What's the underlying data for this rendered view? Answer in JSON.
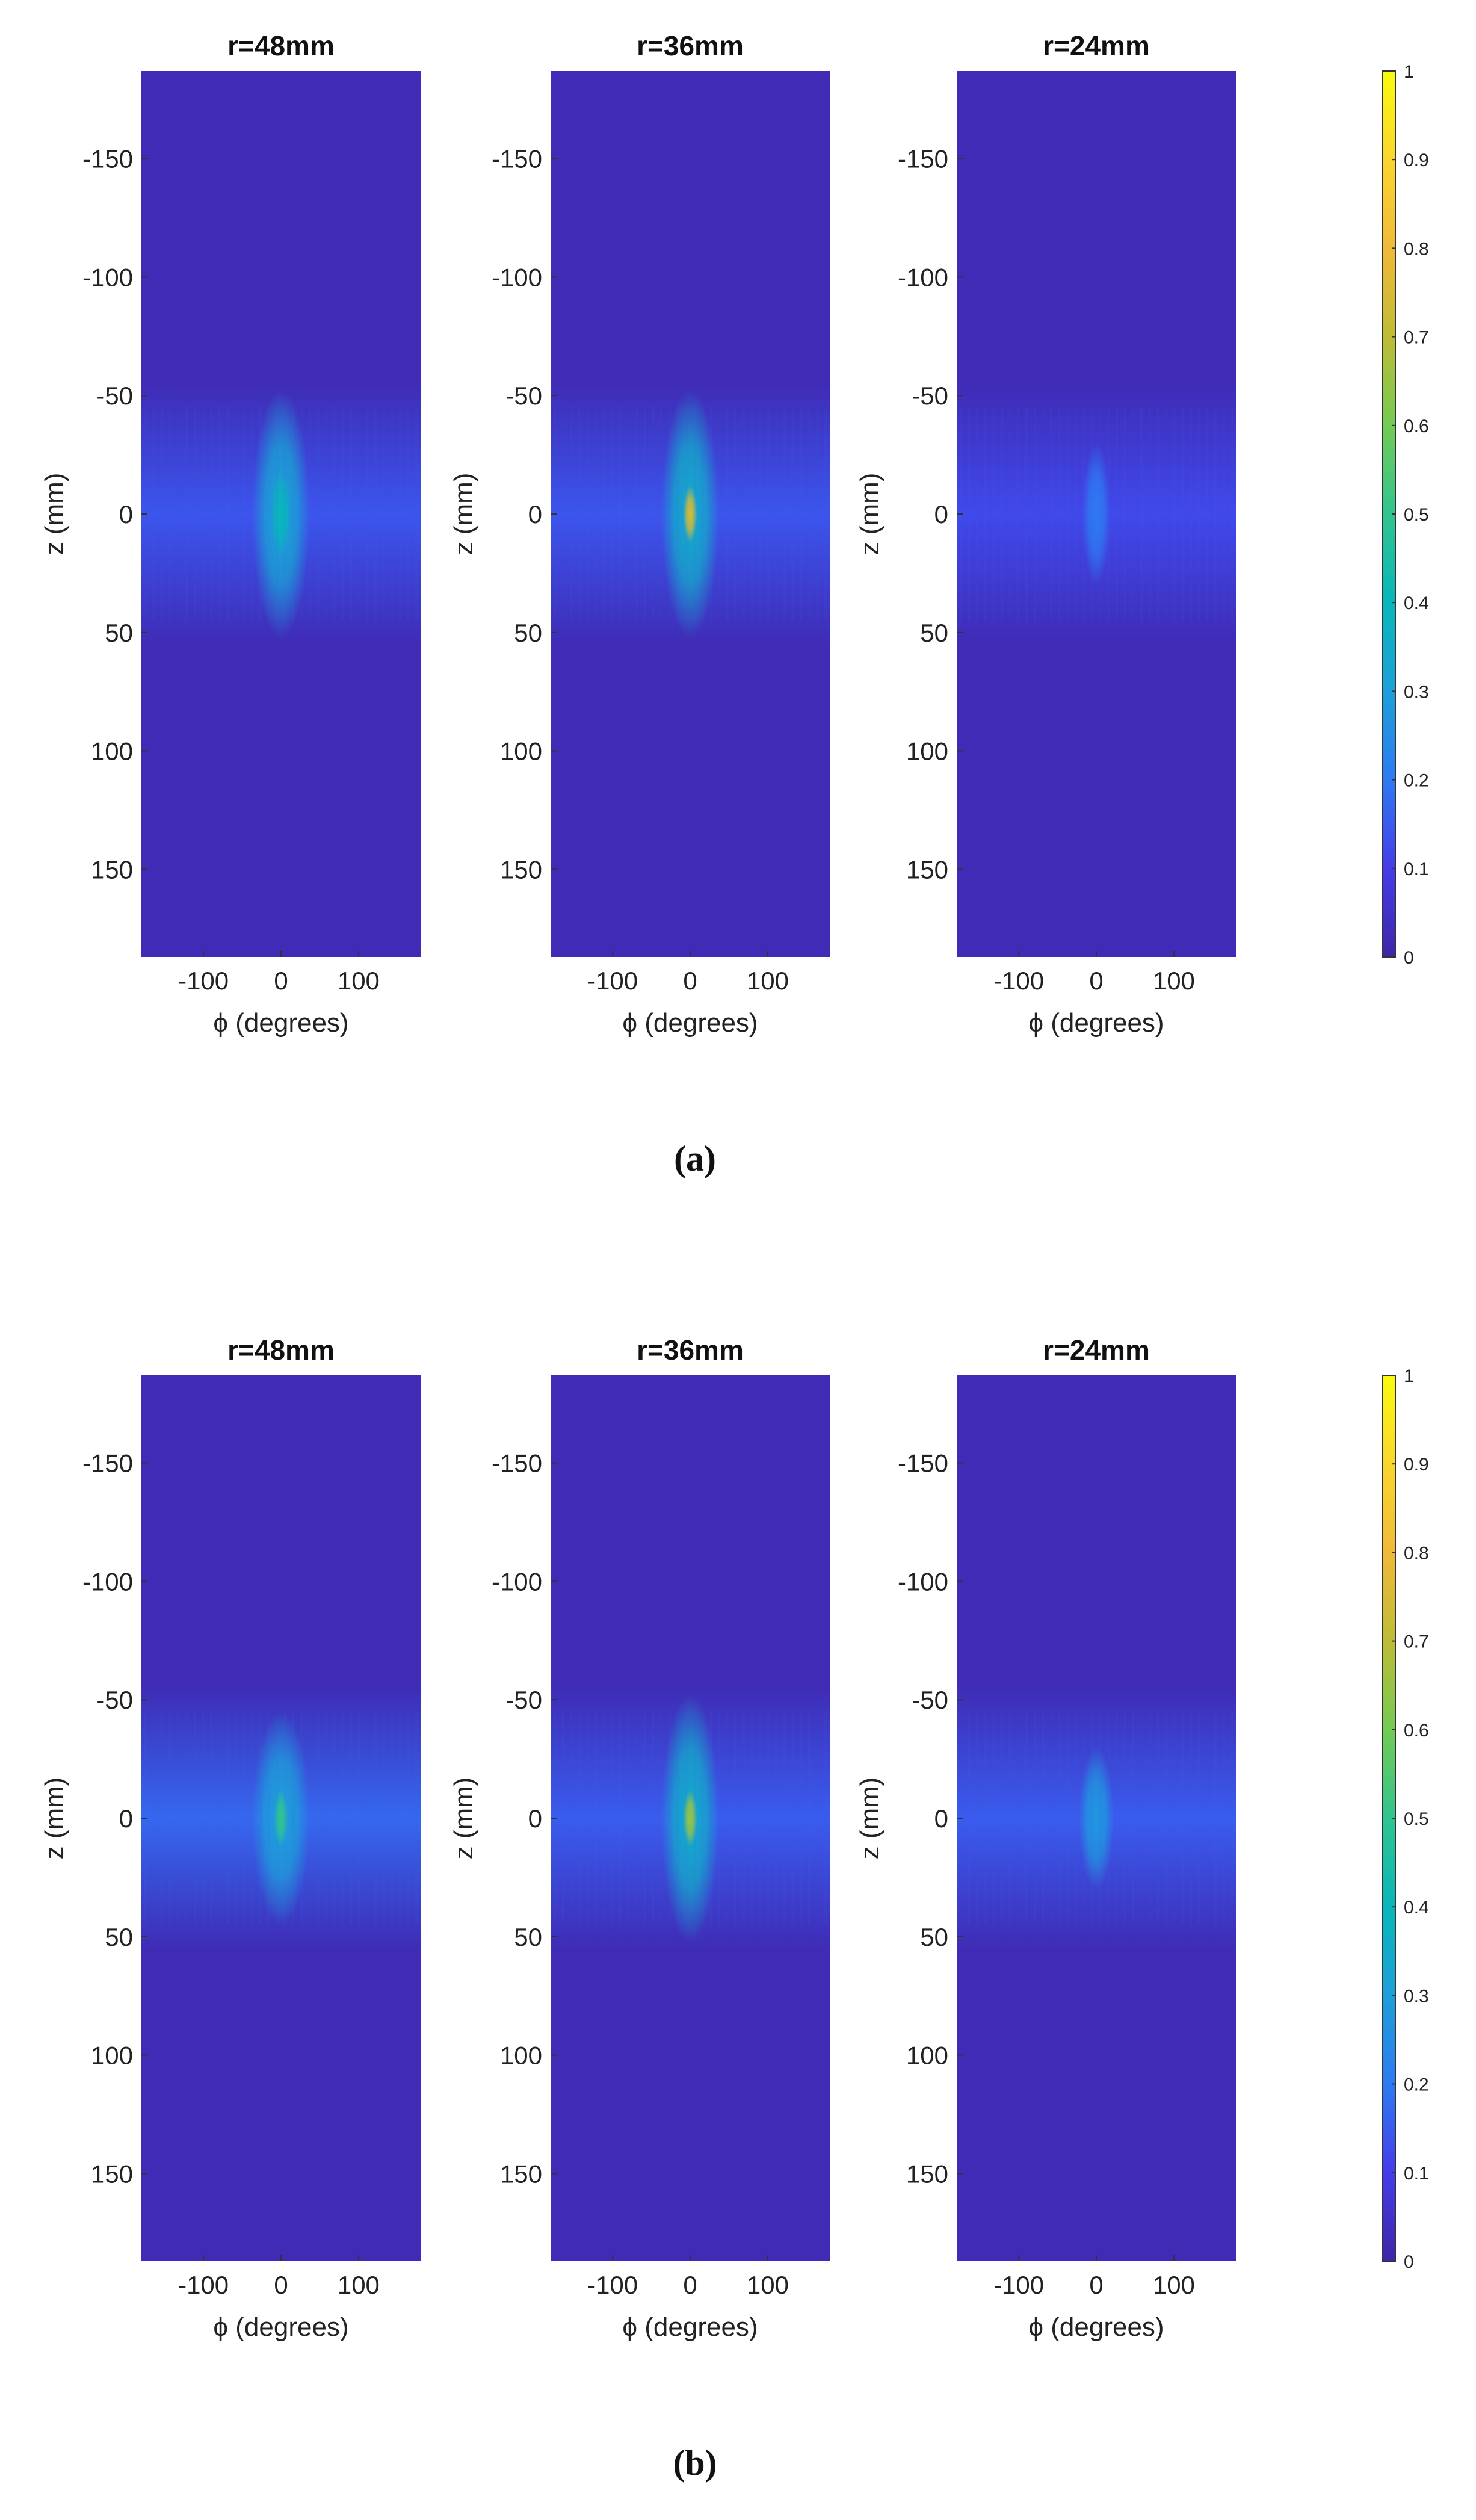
{
  "figure": {
    "panels": [
      {
        "label": "(a)",
        "subplots": [
          {
            "title": "r=48mm"
          },
          {
            "title": "r=36mm"
          },
          {
            "title": "r=24mm"
          }
        ],
        "colorbar": {
          "ticks": [
            "0",
            "0.1",
            "0.2",
            "0.3",
            "0.4",
            "0.5",
            "0.6",
            "0.7",
            "0.8",
            "0.9",
            "1"
          ]
        }
      },
      {
        "label": "(b)",
        "subplots": [
          {
            "title": "r=48mm"
          },
          {
            "title": "r=36mm"
          },
          {
            "title": "r=24mm"
          }
        ],
        "colorbar": {
          "ticks": [
            "0",
            "0.1",
            "0.2",
            "0.3",
            "0.4",
            "0.5",
            "0.6",
            "0.7",
            "0.8",
            "0.9",
            "1"
          ]
        }
      }
    ]
  },
  "chart_data": [
    {
      "type": "heatmap",
      "panel": "(a)",
      "title": "r=48mm",
      "xlabel": "ϕ (degrees)",
      "ylabel": "z (mm)",
      "xlim": [
        -180,
        180
      ],
      "ylim": [
        -187,
        187
      ],
      "y_reversed": true,
      "xticks": [
        "-100",
        "0",
        "100"
      ],
      "yticks": [
        "-150",
        "-100",
        "-50",
        "0",
        "50",
        "100",
        "150"
      ],
      "clim": [
        0,
        1
      ],
      "colormap": "parula",
      "features": [
        {
          "kind": "band",
          "z_center": 0,
          "z_half_width": 35,
          "level": 0.14
        },
        {
          "kind": "spot",
          "phi": 0,
          "z": 0,
          "phi_half_width": 25,
          "z_half_width": 35,
          "level": 0.32
        },
        {
          "kind": "spot",
          "phi": 0,
          "z": 0,
          "phi_half_width": 8,
          "z_half_width": 12,
          "level": 0.4
        }
      ]
    },
    {
      "type": "heatmap",
      "panel": "(a)",
      "title": "r=36mm",
      "xlabel": "ϕ (degrees)",
      "ylabel": "z (mm)",
      "xlim": [
        -180,
        180
      ],
      "ylim": [
        -187,
        187
      ],
      "y_reversed": true,
      "xticks": [
        "-100",
        "0",
        "100"
      ],
      "yticks": [
        "-150",
        "-100",
        "-50",
        "0",
        "50",
        "100",
        "150"
      ],
      "clim": [
        0,
        1
      ],
      "colormap": "parula",
      "features": [
        {
          "kind": "band",
          "z_center": 0,
          "z_half_width": 35,
          "level": 0.14
        },
        {
          "kind": "spot",
          "phi": 0,
          "z": 0,
          "phi_half_width": 25,
          "z_half_width": 35,
          "level": 0.35
        },
        {
          "kind": "spot",
          "phi": 0,
          "z": 0,
          "phi_half_width": 6,
          "z_half_width": 8,
          "level": 0.75
        }
      ]
    },
    {
      "type": "heatmap",
      "panel": "(a)",
      "title": "r=24mm",
      "xlabel": "ϕ (degrees)",
      "ylabel": "z (mm)",
      "xlim": [
        -180,
        180
      ],
      "ylim": [
        -187,
        187
      ],
      "y_reversed": true,
      "xticks": [
        "-100",
        "0",
        "100"
      ],
      "yticks": [
        "-150",
        "-100",
        "-50",
        "0",
        "50",
        "100",
        "150"
      ],
      "clim": [
        0,
        1
      ],
      "colormap": "parula",
      "features": [
        {
          "kind": "band",
          "z_center": 0,
          "z_half_width": 35,
          "level": 0.12
        },
        {
          "kind": "spot",
          "phi": 0,
          "z": 0,
          "phi_half_width": 12,
          "z_half_width": 20,
          "level": 0.2
        }
      ]
    },
    {
      "type": "heatmap",
      "panel": "(b)",
      "title": "r=48mm",
      "xlabel": "ϕ (degrees)",
      "ylabel": "z (mm)",
      "xlim": [
        -180,
        180
      ],
      "ylim": [
        -187,
        187
      ],
      "y_reversed": true,
      "xticks": [
        "-100",
        "0",
        "100"
      ],
      "yticks": [
        "-150",
        "-100",
        "-50",
        "0",
        "50",
        "100",
        "150"
      ],
      "clim": [
        0,
        1
      ],
      "colormap": "parula",
      "features": [
        {
          "kind": "band",
          "z_center": 0,
          "z_half_width": 35,
          "level": 0.17
        },
        {
          "kind": "spot",
          "phi": 0,
          "z": 0,
          "phi_half_width": 25,
          "z_half_width": 30,
          "level": 0.3
        },
        {
          "kind": "spot",
          "phi": 0,
          "z": 0,
          "phi_half_width": 6,
          "z_half_width": 8,
          "level": 0.5
        }
      ]
    },
    {
      "type": "heatmap",
      "panel": "(b)",
      "title": "r=36mm",
      "xlabel": "ϕ (degrees)",
      "ylabel": "z (mm)",
      "xlim": [
        -180,
        180
      ],
      "ylim": [
        -187,
        187
      ],
      "y_reversed": true,
      "xticks": [
        "-100",
        "0",
        "100"
      ],
      "yticks": [
        "-150",
        "-100",
        "-50",
        "0",
        "50",
        "100",
        "150"
      ],
      "clim": [
        0,
        1
      ],
      "colormap": "parula",
      "features": [
        {
          "kind": "band",
          "z_center": 0,
          "z_half_width": 35,
          "level": 0.15
        },
        {
          "kind": "spot",
          "phi": 0,
          "z": 0,
          "phi_half_width": 25,
          "z_half_width": 35,
          "level": 0.35
        },
        {
          "kind": "spot",
          "phi": 0,
          "z": 0,
          "phi_half_width": 6,
          "z_half_width": 8,
          "level": 0.65
        }
      ]
    },
    {
      "type": "heatmap",
      "panel": "(b)",
      "title": "r=24mm",
      "xlabel": "ϕ (degrees)",
      "ylabel": "z (mm)",
      "xlim": [
        -180,
        180
      ],
      "ylim": [
        -187,
        187
      ],
      "y_reversed": true,
      "xticks": [
        "-100",
        "0",
        "100"
      ],
      "yticks": [
        "-150",
        "-100",
        "-50",
        "0",
        "50",
        "100",
        "150"
      ],
      "clim": [
        0,
        1
      ],
      "colormap": "parula",
      "features": [
        {
          "kind": "band",
          "z_center": 0,
          "z_half_width": 35,
          "level": 0.15
        },
        {
          "kind": "spot",
          "phi": 0,
          "z": 0,
          "phi_half_width": 15,
          "z_half_width": 20,
          "level": 0.28
        }
      ]
    }
  ]
}
